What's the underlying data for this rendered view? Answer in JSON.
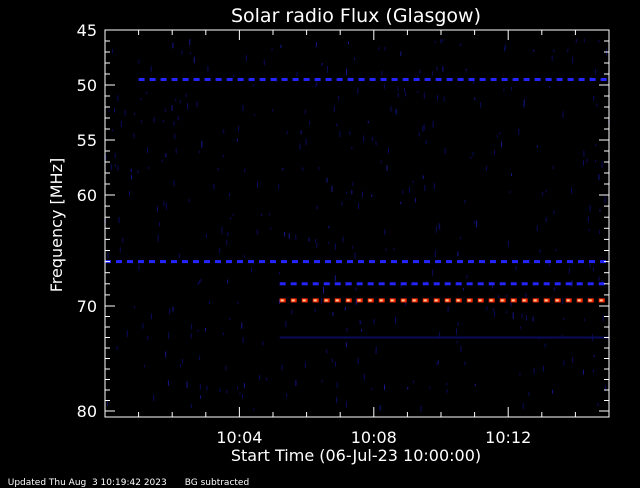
{
  "chart_data": {
    "type": "heatmap",
    "title": "Solar radio Flux (Glasgow)",
    "xlabel": "Start Time (06-Jul-23 10:00:00)",
    "ylabel": "Frequency [MHz]",
    "x_range_minutes": [
      0,
      15
    ],
    "x_ticks": [
      {
        "value": 4,
        "label": "10:04"
      },
      {
        "value": 8,
        "label": "10:08"
      },
      {
        "value": 12,
        "label": "10:12"
      }
    ],
    "y_range_mhz": [
      45,
      80
    ],
    "y_reversed": true,
    "y_ticks": [
      {
        "value": 45,
        "label": "45"
      },
      {
        "value": 50,
        "label": "50"
      },
      {
        "value": 55,
        "label": "55"
      },
      {
        "value": 60,
        "label": "60"
      },
      {
        "value": 70,
        "label": "70"
      },
      {
        "value": 80,
        "label": "80"
      }
    ],
    "colors": {
      "background": "#000000",
      "weak": "#0a0a5a",
      "medium": "#2424ff",
      "strong": "#ff2a00",
      "peak": "#ffcc99"
    },
    "emission_bands": [
      {
        "freq_mhz": 49.5,
        "t_start": 1.0,
        "t_end": 15.0,
        "intensity": "medium",
        "dashed": true
      },
      {
        "freq_mhz": 66.0,
        "t_start": 0.0,
        "t_end": 15.0,
        "intensity": "medium",
        "dashed": true
      },
      {
        "freq_mhz": 68.0,
        "t_start": 5.2,
        "t_end": 15.0,
        "intensity": "medium",
        "dashed": true
      },
      {
        "freq_mhz": 69.5,
        "t_start": 5.2,
        "t_end": 15.0,
        "intensity": "strong",
        "dashed": true
      },
      {
        "freq_mhz": 73.0,
        "t_start": 5.2,
        "t_end": 15.0,
        "intensity": "weak",
        "dashed": false
      }
    ]
  },
  "footer": {
    "updated": "Updated Thu Aug  3 10:19:42 2023",
    "note": "BG subtracted"
  }
}
